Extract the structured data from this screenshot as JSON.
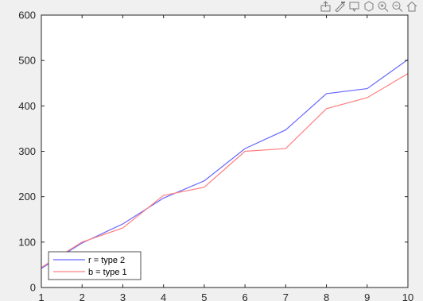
{
  "toolbar": {
    "icons": [
      "export-icon",
      "brush-icon",
      "datatip-icon",
      "rotate-icon",
      "zoom-in-icon",
      "zoom-out-icon",
      "home-icon"
    ]
  },
  "chart_data": {
    "type": "line",
    "x": [
      1,
      2,
      3,
      4,
      5,
      6,
      7,
      8,
      9,
      10
    ],
    "series": [
      {
        "name": "r = type 2",
        "color": "#6666ff",
        "values": [
          42,
          98,
          140,
          197,
          235,
          306,
          347,
          427,
          438,
          502
        ]
      },
      {
        "name": "b = type 1",
        "color": "#ff7f7f",
        "values": [
          44,
          100,
          131,
          203,
          221,
          300,
          306,
          394,
          418,
          471
        ]
      }
    ],
    "xlim": [
      1,
      10
    ],
    "ylim": [
      0,
      600
    ],
    "xticks": [
      1,
      2,
      3,
      4,
      5,
      6,
      7,
      8,
      9,
      10
    ],
    "yticks": [
      0,
      100,
      200,
      300,
      400,
      500,
      600
    ],
    "xtick_labels": [
      "1",
      "2",
      "3",
      "4",
      "5",
      "6",
      "7",
      "8",
      "9",
      "10"
    ],
    "ytick_labels": [
      "0",
      "100",
      "200",
      "300",
      "400",
      "500",
      "600"
    ],
    "grid": false,
    "legend": {
      "placement": "bottom-left",
      "entries": [
        "r = type 2",
        "b = type 1"
      ]
    },
    "title": "",
    "xlabel": "",
    "ylabel": ""
  }
}
